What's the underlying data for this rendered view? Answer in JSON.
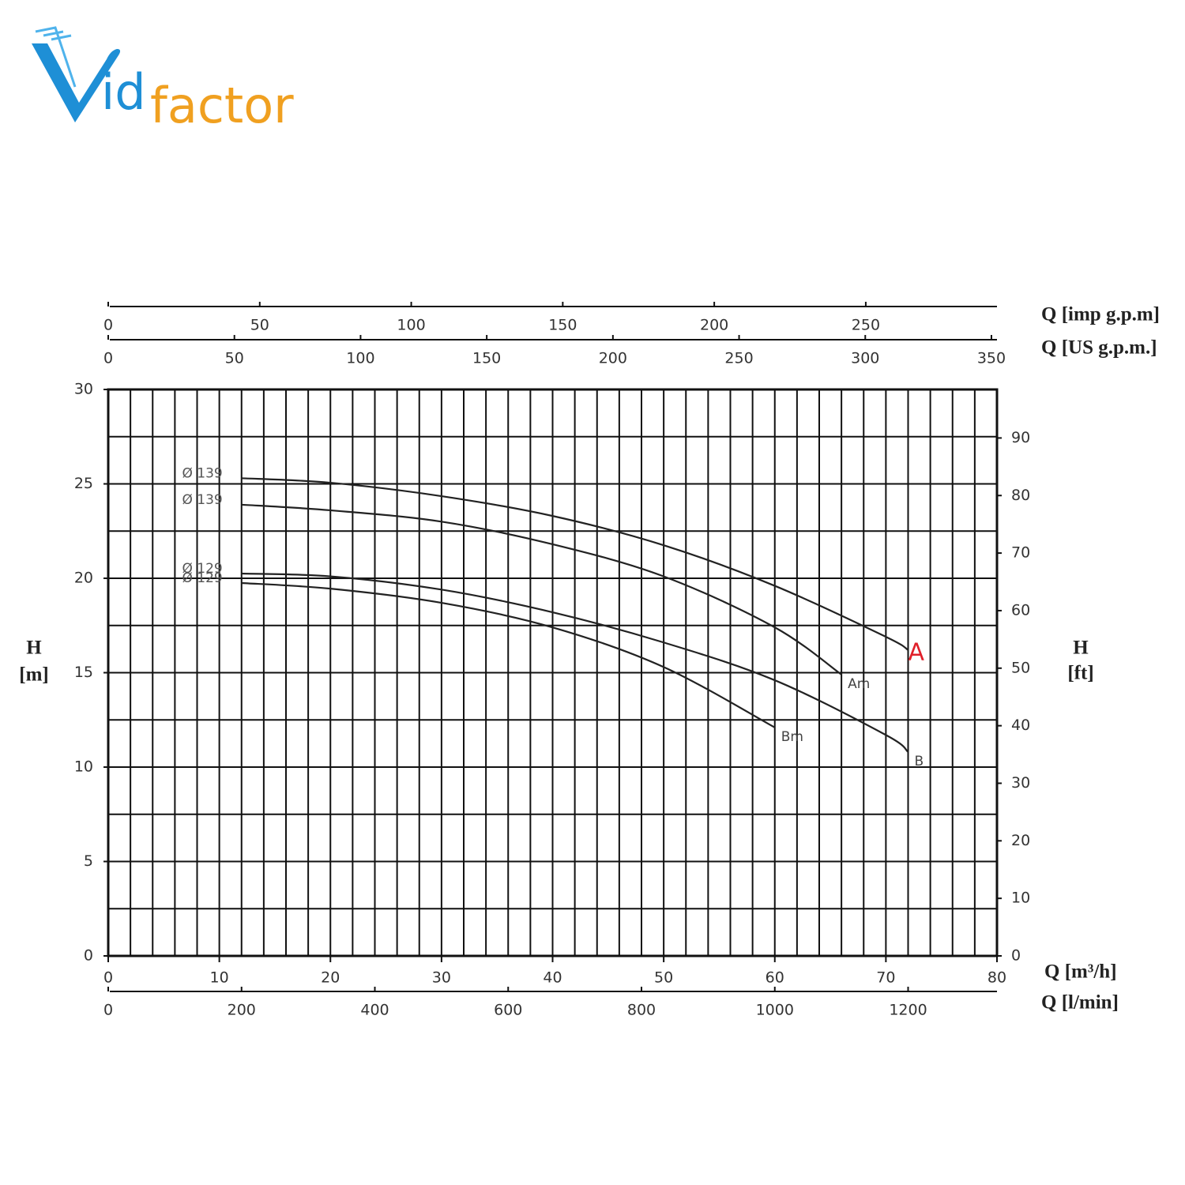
{
  "logo": {
    "first": "id",
    "second": "factor"
  },
  "chart_data": {
    "type": "line",
    "xlim": [
      0,
      80
    ],
    "xticks": [
      0,
      10,
      20,
      30,
      40,
      50,
      60,
      70,
      80
    ],
    "xlabel": "Q [m³/h]",
    "ylim": [
      0,
      30
    ],
    "yticks": [
      0,
      5,
      10,
      15,
      20,
      25,
      30
    ],
    "ylabel": {
      "symbol": "H",
      "unit": "[m]"
    },
    "y2lim": [
      0,
      98.43
    ],
    "y2ticks": [
      0,
      10,
      20,
      30,
      40,
      50,
      60,
      70,
      80,
      90
    ],
    "y2label": {
      "symbol": "H",
      "unit": "[ft]"
    },
    "grid": {
      "x_step": 2,
      "y_step": 2.5
    },
    "secondary_x_axes": [
      {
        "position": "bottom",
        "label": "Q [l/min]",
        "lim": [
          0,
          1333.33
        ],
        "ticks": [
          0,
          200,
          400,
          600,
          800,
          1000,
          1200
        ]
      },
      {
        "position": "top",
        "label": "Q [US g.p.m.]",
        "lim": [
          0,
          352.2
        ],
        "ticks": [
          0,
          50,
          100,
          150,
          200,
          250,
          300,
          350
        ]
      },
      {
        "position": "top",
        "label": "Q [imp g.p.m]",
        "lim": [
          0,
          293.3
        ],
        "ticks": [
          0,
          50,
          100,
          150,
          200,
          250
        ]
      }
    ],
    "series": [
      {
        "name": "A",
        "label": "Ø 139",
        "color": "#222222",
        "name_color": "#e0202a",
        "x": [
          12,
          20,
          30,
          40,
          50,
          60,
          70,
          72
        ],
        "values": [
          25.3,
          25.06,
          24.35,
          23.3,
          21.75,
          19.6,
          16.9,
          16.2
        ]
      },
      {
        "name": "Am",
        "label": "Ø 139",
        "color": "#222222",
        "name_color": "#444444",
        "x": [
          12,
          20,
          30,
          40,
          50,
          60,
          66
        ],
        "values": [
          23.9,
          23.6,
          23.0,
          21.8,
          20.1,
          17.4,
          14.9
        ]
      },
      {
        "name": "B",
        "label": "Ø 129",
        "color": "#222222",
        "name_color": "#444444",
        "x": [
          12,
          20,
          30,
          40,
          50,
          60,
          70,
          72
        ],
        "values": [
          20.25,
          20.1,
          19.4,
          18.2,
          16.6,
          14.6,
          11.7,
          10.8
        ]
      },
      {
        "name": "Bm",
        "label": "Ø 129",
        "color": "#222222",
        "name_color": "#444444",
        "x": [
          12,
          20,
          30,
          40,
          50,
          60
        ],
        "values": [
          19.75,
          19.45,
          18.7,
          17.4,
          15.3,
          12.1
        ]
      }
    ]
  }
}
